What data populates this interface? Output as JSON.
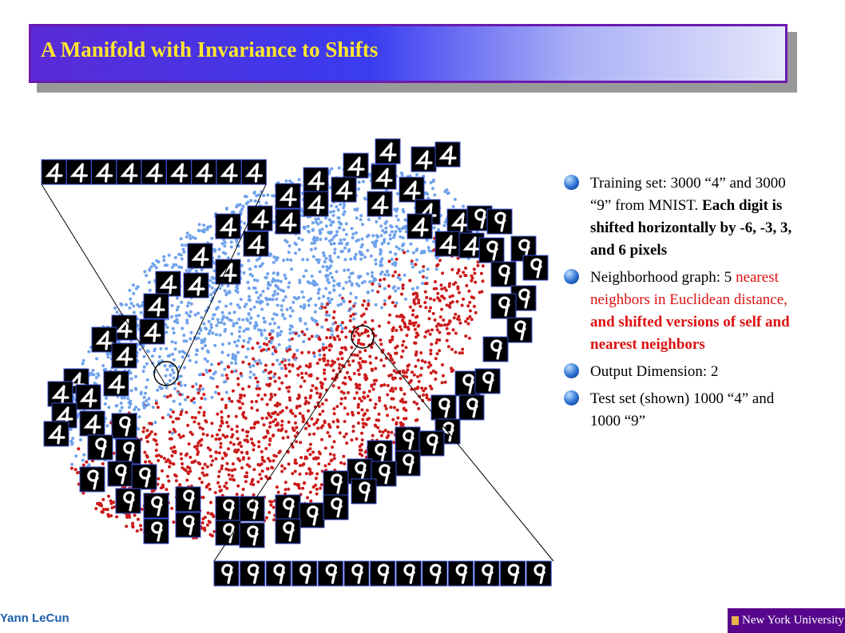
{
  "header": {
    "title": "A Manifold with Invariance to Shifts"
  },
  "bullets": [
    [
      {
        "text": " Training set: 3000 “4” and 3000 “9” from MNIST. ",
        "style": "plain"
      },
      {
        "text": "Each digit is shifted horizontally by -6, -3, 3, and 6  pixels",
        "style": "bold"
      }
    ],
    [
      {
        "text": "Neighborhood graph: 5 ",
        "style": "plain"
      },
      {
        "text": "nearest neighbors in Euclidean distance, ",
        "style": "red"
      },
      {
        "text": "and shifted versions of self and nearest neighbors",
        "style": "red-bold"
      }
    ],
    [
      {
        "text": "Output Dimension: 2",
        "style": "plain"
      }
    ],
    [
      {
        "text": "Test set (shown) 1000 “4” and 1000 “9”",
        "style": "plain"
      }
    ]
  ],
  "footer": {
    "author": "Yann LeCun",
    "logo": "New York University"
  }
}
